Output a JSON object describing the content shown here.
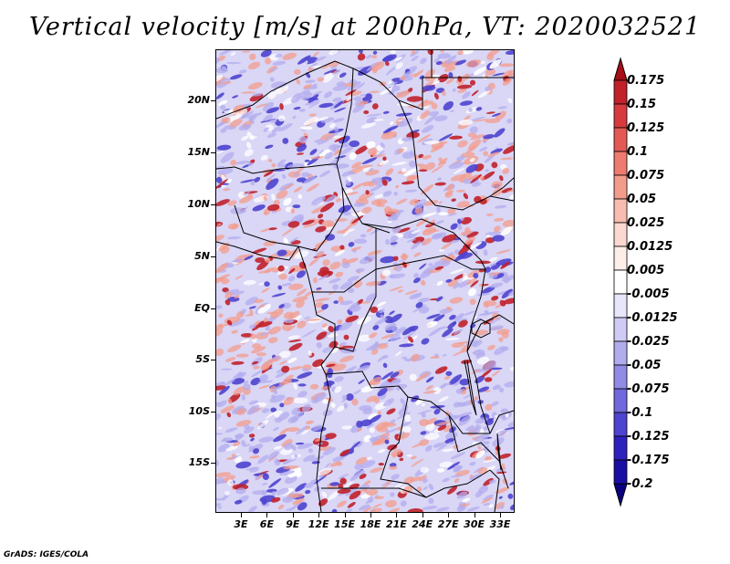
{
  "title": "Vertical velocity [m/s] at 200hPa, VT: 2020032521",
  "credit": "GrADS: IGES/COLA",
  "axes": {
    "lat_labels": [
      "20N",
      "15N",
      "10N",
      "5N",
      "EQ",
      "5S",
      "10S",
      "15S"
    ],
    "lon_labels": [
      "3E",
      "6E",
      "9E",
      "12E",
      "15E",
      "18E",
      "21E",
      "24E",
      "27E",
      "30E",
      "33E"
    ]
  },
  "colorbar": {
    "levels": [
      "0.175",
      "0.15",
      "0.125",
      "0.1",
      "0.075",
      "0.05",
      "0.025",
      "0.0125",
      "0.005",
      "-0.005",
      "-0.0125",
      "-0.025",
      "-0.05",
      "-0.075",
      "-0.1",
      "-0.125",
      "-0.175",
      "-0.2"
    ],
    "colors": [
      "#a50f15",
      "#c0212b",
      "#d63a3f",
      "#e35a55",
      "#ee7b6f",
      "#f39c8c",
      "#f8bdb0",
      "#fcd9d0",
      "#fdeeea",
      "#ffffff",
      "#e8e6fa",
      "#cfcbf5",
      "#b1acee",
      "#928be6",
      "#7068dc",
      "#4d44cf",
      "#2e22bd",
      "#1a0fa3",
      "#0b0080"
    ]
  },
  "colors": {
    "red": "#c0212b",
    "pink": "#f39c8c",
    "blue": "#4d44cf",
    "lightblue": "#b1acee",
    "white": "#ffffff",
    "border": "#000000"
  }
}
